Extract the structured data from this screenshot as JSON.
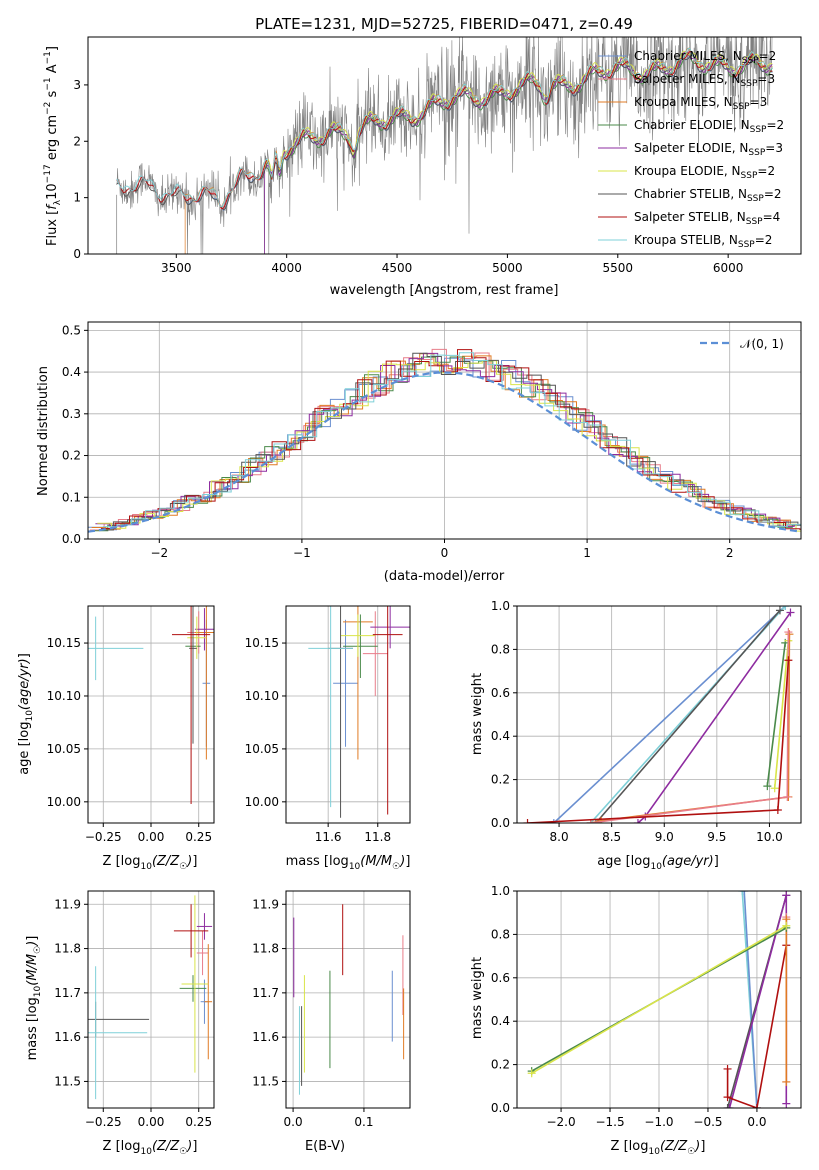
{
  "palette": {
    "chabrier_miles": "#6a8fd0",
    "salpeter_miles": "#e87d8a",
    "kroupa_miles": "#e07b24",
    "chabrier_elodie": "#4a8a4a",
    "salpeter_elodie": "#8e2ca0",
    "kroupa_elodie": "#d9e44a",
    "chabrier_stelib": "#555555",
    "salpeter_stelib": "#b01010",
    "kroupa_stelib": "#7fd0d8",
    "data": "#808080",
    "gauss": "#5b8fd6"
  },
  "chart_data": [
    {
      "id": "spectrum",
      "type": "line",
      "title": "PLATE=1231, MJD=52725, FIBERID=0471, z=0.49",
      "xlabel": "wavelength [Angstrom, rest frame]",
      "ylabel_parts": [
        "Flux [",
        "f",
        "λ",
        "10",
        "−17",
        " erg cm",
        "−2",
        " s",
        "−1",
        " A",
        "−1",
        "]"
      ],
      "xlim": [
        3100,
        6330
      ],
      "ylim": [
        0,
        3.85
      ],
      "xticks": [
        3500,
        4000,
        4500,
        5000,
        5500,
        6000
      ],
      "yticks": [
        0,
        1,
        2,
        3
      ],
      "legend_position": "top-right",
      "legend": [
        {
          "pre": "Chabrier MILES, N",
          "sub": "SSP",
          "post": "=2",
          "color": "chabrier_miles"
        },
        {
          "pre": "Salpeter MILES, N",
          "sub": "SSP",
          "post": "=3",
          "color": "salpeter_miles"
        },
        {
          "pre": "Kroupa MILES, N",
          "sub": "SSP",
          "post": "=3",
          "color": "kroupa_miles"
        },
        {
          "pre": "Chabrier ELODIE, N",
          "sub": "SSP",
          "post": "=2",
          "color": "chabrier_elodie"
        },
        {
          "pre": "Salpeter ELODIE, N",
          "sub": "SSP",
          "post": "=3",
          "color": "salpeter_elodie"
        },
        {
          "pre": "Kroupa ELODIE, N",
          "sub": "SSP",
          "post": "=2",
          "color": "kroupa_elodie"
        },
        {
          "pre": "Chabrier STELIB, N",
          "sub": "SSP",
          "post": "=2",
          "color": "chabrier_stelib"
        },
        {
          "pre": "Salpeter STELIB, N",
          "sub": "SSP",
          "post": "=4",
          "color": "salpeter_stelib"
        },
        {
          "pre": "Kroupa STELIB, N",
          "sub": "SSP",
          "post": "=2",
          "color": "kroupa_stelib"
        }
      ],
      "continuum": [
        [
          3230,
          1.15
        ],
        [
          3400,
          1.15
        ],
        [
          3600,
          1.05
        ],
        [
          3700,
          0.85
        ],
        [
          3800,
          1.4
        ],
        [
          4000,
          1.8
        ],
        [
          4200,
          2.25
        ],
        [
          4300,
          2.1
        ],
        [
          4500,
          2.45
        ],
        [
          4700,
          2.65
        ],
        [
          4900,
          2.85
        ],
        [
          5000,
          2.9
        ],
        [
          5200,
          3.0
        ],
        [
          5500,
          3.25
        ],
        [
          5800,
          3.35
        ],
        [
          6000,
          3.4
        ],
        [
          6200,
          3.3
        ]
      ],
      "model_start": {
        "chabrier_miles": 3540,
        "salpeter_miles": 3540,
        "kroupa_miles": 3540,
        "chabrier_elodie": 3900,
        "salpeter_elodie": 3900,
        "kroupa_elodie": 3900,
        "chabrier_stelib": 3230,
        "salpeter_stelib": 3230,
        "kroupa_stelib": 3230
      },
      "model_end": 6200
    },
    {
      "id": "residuals",
      "type": "histogram",
      "xlabel": "(data-model)/error",
      "ylabel": "Normed distribution",
      "xlim": [
        -2.5,
        2.5
      ],
      "ylim": [
        0,
        0.52
      ],
      "xticks": [
        -2,
        -1,
        0,
        1,
        2
      ],
      "yticks": [
        0.0,
        0.1,
        0.2,
        0.3,
        0.4,
        0.5
      ],
      "grid": true,
      "legend_position": "top-right",
      "legend_label": "𝒩(0, 1)",
      "gauss": {
        "mean": 0,
        "sigma": 1
      }
    },
    {
      "id": "age_vs_Z",
      "type": "errorbar",
      "xlabel": "Z [log10(Z/Z☉)]",
      "ylabel": "age  [log10(age/yr)]",
      "xlim": [
        -0.33,
        0.33
      ],
      "ylim": [
        9.98,
        10.185
      ],
      "xticks": [
        -0.25,
        0.0,
        0.25
      ],
      "yticks": [
        10.0,
        10.05,
        10.1,
        10.15
      ],
      "grid": true,
      "points": [
        {
          "c": "chabrier_miles",
          "x": 0.29,
          "xe": 0.02,
          "y": 10.112,
          "ye": 0.06
        },
        {
          "c": "salpeter_miles",
          "x": 0.25,
          "xe": 0.06,
          "y": 10.16,
          "ye": 0.02
        },
        {
          "c": "kroupa_miles",
          "x": 0.29,
          "xe": 0.06,
          "y": 10.16,
          "ye": 0.12
        },
        {
          "c": "chabrier_elodie",
          "x": 0.22,
          "xe": 0.04,
          "y": 10.147,
          "ye": 0.02
        },
        {
          "c": "salpeter_elodie",
          "x": 0.28,
          "xe": 0.05,
          "y": 10.163,
          "ye": 0.02
        },
        {
          "c": "kroupa_elodie",
          "x": 0.24,
          "xe": 0.05,
          "y": 10.155,
          "ye": 0.02
        },
        {
          "c": "chabrier_stelib",
          "x": 0.22,
          "xe": 0.02,
          "y": 10.145,
          "ye": 0.09
        },
        {
          "c": "salpeter_stelib",
          "x": 0.21,
          "xe": 0.1,
          "y": 10.158,
          "ye": 0.16
        },
        {
          "c": "kroupa_stelib",
          "x": -0.29,
          "xe": 0.25,
          "y": 10.145,
          "ye": 0.03
        }
      ]
    },
    {
      "id": "age_vs_mass",
      "type": "errorbar",
      "xlabel": "mass [log10(M/M☉)]",
      "ylabel": "",
      "xlim": [
        11.43,
        11.93
      ],
      "ylim": [
        9.98,
        10.185
      ],
      "xticks": [
        11.6,
        11.8
      ],
      "yticks": [
        10.0,
        10.05,
        10.1,
        10.15
      ],
      "grid": true,
      "points": [
        {
          "c": "chabrier_miles",
          "x": 11.67,
          "xe": 0.05,
          "y": 10.112,
          "ye": 0.06
        },
        {
          "c": "salpeter_miles",
          "x": 11.79,
          "xe": 0.05,
          "y": 10.14,
          "ye": 0.04
        },
        {
          "c": "kroupa_miles",
          "x": 11.72,
          "xe": 0.06,
          "y": 10.17,
          "ye": 0.13
        },
        {
          "c": "chabrier_elodie",
          "x": 11.73,
          "xe": 0.07,
          "y": 10.147,
          "ye": 0.03
        },
        {
          "c": "salpeter_elodie",
          "x": 11.85,
          "xe": 0.08,
          "y": 10.165,
          "ye": 0.02
        },
        {
          "c": "kroupa_elodie",
          "x": 11.72,
          "xe": 0.07,
          "y": 10.157,
          "ye": 0.02
        },
        {
          "c": "chabrier_stelib",
          "x": 11.65,
          "xe": 0.05,
          "y": 10.145,
          "ye": 0.16
        },
        {
          "c": "salpeter_stelib",
          "x": 11.84,
          "xe": 0.06,
          "y": 10.158,
          "ye": 0.17
        },
        {
          "c": "kroupa_stelib",
          "x": 11.61,
          "xe": 0.09,
          "y": 10.145,
          "ye": 0.15
        }
      ]
    },
    {
      "id": "weight_vs_age",
      "type": "line",
      "xlabel": "age  [log10(age/yr)]",
      "ylabel": "mass weight",
      "xlim": [
        7.6,
        10.3
      ],
      "ylim": [
        0,
        1.0
      ],
      "xticks": [
        8.0,
        8.5,
        9.0,
        9.5,
        10.0
      ],
      "yticks": [
        0.0,
        0.2,
        0.4,
        0.6,
        0.8,
        1.0
      ],
      "grid": true,
      "series": [
        {
          "c": "chabrier_miles",
          "pts": [
            [
              7.95,
              0.0
            ],
            [
              10.15,
              1.0
            ]
          ]
        },
        {
          "c": "kroupa_stelib",
          "pts": [
            [
              8.3,
              0.0
            ],
            [
              10.15,
              1.0
            ]
          ]
        },
        {
          "c": "chabrier_stelib",
          "pts": [
            [
              8.35,
              0.0
            ],
            [
              10.1,
              0.98
            ]
          ]
        },
        {
          "c": "salpeter_elodie",
          "pts": [
            [
              8.75,
              0.0
            ],
            [
              8.82,
              0.03
            ],
            [
              10.2,
              0.97
            ]
          ]
        },
        {
          "c": "chabrier_elodie",
          "pts": [
            [
              9.98,
              0.17
            ],
            [
              10.15,
              0.83
            ]
          ]
        },
        {
          "c": "kroupa_elodie",
          "pts": [
            [
              10.05,
              0.16
            ],
            [
              10.18,
              0.84
            ]
          ]
        },
        {
          "c": "kroupa_miles",
          "pts": [
            [
              8.3,
              0.0
            ],
            [
              8.4,
              0.01
            ],
            [
              10.18,
              0.12
            ],
            [
              10.19,
              0.87
            ]
          ]
        },
        {
          "c": "salpeter_miles",
          "pts": [
            [
              8.3,
              0.0
            ],
            [
              10.17,
              0.12
            ],
            [
              10.18,
              0.88
            ]
          ]
        },
        {
          "c": "salpeter_stelib",
          "pts": [
            [
              7.7,
              0.0
            ],
            [
              10.08,
              0.06
            ],
            [
              10.18,
              0.75
            ]
          ]
        }
      ]
    },
    {
      "id": "mass_vs_Z",
      "type": "errorbar",
      "xlabel": "Z [log10(Z/Z☉)]",
      "ylabel": "mass [log10(M/M☉)]",
      "xlim": [
        -0.33,
        0.33
      ],
      "ylim": [
        11.44,
        11.93
      ],
      "xticks": [
        -0.25,
        0.0,
        0.25
      ],
      "yticks": [
        11.5,
        11.6,
        11.7,
        11.8,
        11.9
      ],
      "grid": true,
      "points": [
        {
          "c": "chabrier_miles",
          "x": 0.28,
          "xe": 0.02,
          "y": 11.68,
          "ye": 0.05
        },
        {
          "c": "salpeter_miles",
          "x": 0.27,
          "xe": 0.03,
          "y": 11.79,
          "ye": 0.05
        },
        {
          "c": "kroupa_miles",
          "x": 0.3,
          "xe": 0.02,
          "y": 11.68,
          "ye": 0.13
        },
        {
          "c": "chabrier_elodie",
          "x": 0.22,
          "xe": 0.07,
          "y": 11.71,
          "ye": 0.03
        },
        {
          "c": "salpeter_elodie",
          "x": 0.28,
          "xe": 0.04,
          "y": 11.85,
          "ye": 0.03
        },
        {
          "c": "kroupa_elodie",
          "x": 0.23,
          "xe": 0.07,
          "y": 11.72,
          "ye": 0.2
        },
        {
          "c": "chabrier_stelib",
          "x": -0.29,
          "xe": 0.28,
          "y": 11.64,
          "ye": 0.04
        },
        {
          "c": "salpeter_stelib",
          "x": 0.21,
          "xe": 0.09,
          "y": 11.84,
          "ye": 0.06
        },
        {
          "c": "kroupa_stelib",
          "x": -0.29,
          "xe": 0.27,
          "y": 11.61,
          "ye": 0.15
        }
      ]
    },
    {
      "id": "mass_vs_ebv",
      "type": "errorbar",
      "xlabel": "E(B-V)",
      "ylabel": "",
      "xlim": [
        -0.01,
        0.165
      ],
      "ylim": [
        11.44,
        11.93
      ],
      "xticks": [
        0.0,
        0.1
      ],
      "yticks": [
        11.5,
        11.6,
        11.7,
        11.8,
        11.9
      ],
      "grid": true,
      "points": [
        {
          "c": "chabrier_miles",
          "x": 0.14,
          "xe": 0,
          "y": 11.67,
          "ye": 0.08
        },
        {
          "c": "salpeter_miles",
          "x": 0.155,
          "xe": 0,
          "y": 11.74,
          "ye": 0.09
        },
        {
          "c": "kroupa_miles",
          "x": 0.156,
          "xe": 0,
          "y": 11.63,
          "ye": 0.08
        },
        {
          "c": "chabrier_elodie",
          "x": 0.052,
          "xe": 0,
          "y": 11.64,
          "ye": 0.11
        },
        {
          "c": "salpeter_elodie",
          "x": 0.001,
          "xe": 0,
          "y": 11.78,
          "ye": 0.09
        },
        {
          "c": "kroupa_elodie",
          "x": 0.016,
          "xe": 0,
          "y": 11.63,
          "ye": 0.11
        },
        {
          "c": "chabrier_stelib",
          "x": 0.012,
          "xe": 0,
          "y": 11.58,
          "ye": 0.09
        },
        {
          "c": "salpeter_stelib",
          "x": 0.07,
          "xe": 0,
          "y": 11.82,
          "ye": 0.08
        },
        {
          "c": "kroupa_stelib",
          "x": 0.009,
          "xe": 0,
          "y": 11.57,
          "ye": 0.1
        }
      ]
    },
    {
      "id": "weight_vs_Z",
      "type": "line",
      "xlabel": "Z [log10(Z/Z☉)]",
      "ylabel": "mass weight",
      "xlim": [
        -2.45,
        0.45
      ],
      "ylim": [
        0,
        1.0
      ],
      "xticks": [
        -2.0,
        -1.5,
        -1.0,
        -0.5,
        0.0
      ],
      "yticks": [
        0.0,
        0.2,
        0.4,
        0.6,
        0.8,
        1.0
      ],
      "grid": true,
      "series": [
        {
          "c": "kroupa_stelib",
          "pts": [
            [
              -0.15,
              1.0
            ],
            [
              0.0,
              0.0
            ]
          ]
        },
        {
          "c": "chabrier_miles",
          "pts": [
            [
              -0.13,
              1.0
            ],
            [
              0.0,
              0.0
            ]
          ]
        },
        {
          "c": "chabrier_stelib",
          "pts": [
            [
              -0.3,
              0.0
            ],
            [
              0.3,
              0.98
            ]
          ]
        },
        {
          "c": "salpeter_elodie",
          "pts": [
            [
              -0.28,
              0.0
            ],
            [
              0.3,
              0.98
            ],
            [
              0.3,
              0.02
            ]
          ]
        },
        {
          "c": "salpeter_stelib",
          "pts": [
            [
              -0.3,
              0.18
            ],
            [
              -0.3,
              0.05
            ],
            [
              0.0,
              0.0
            ],
            [
              0.3,
              0.75
            ]
          ]
        },
        {
          "c": "salpeter_miles",
          "pts": [
            [
              0.3,
              0.12
            ],
            [
              0.3,
              0.88
            ]
          ]
        },
        {
          "c": "kroupa_miles",
          "pts": [
            [
              0.3,
              0.12
            ],
            [
              0.3,
              0.87
            ]
          ]
        },
        {
          "c": "chabrier_elodie",
          "pts": [
            [
              -2.3,
              0.17
            ],
            [
              0.3,
              0.83
            ]
          ]
        },
        {
          "c": "kroupa_elodie",
          "pts": [
            [
              -2.3,
              0.16
            ],
            [
              0.3,
              0.84
            ]
          ]
        }
      ]
    }
  ]
}
